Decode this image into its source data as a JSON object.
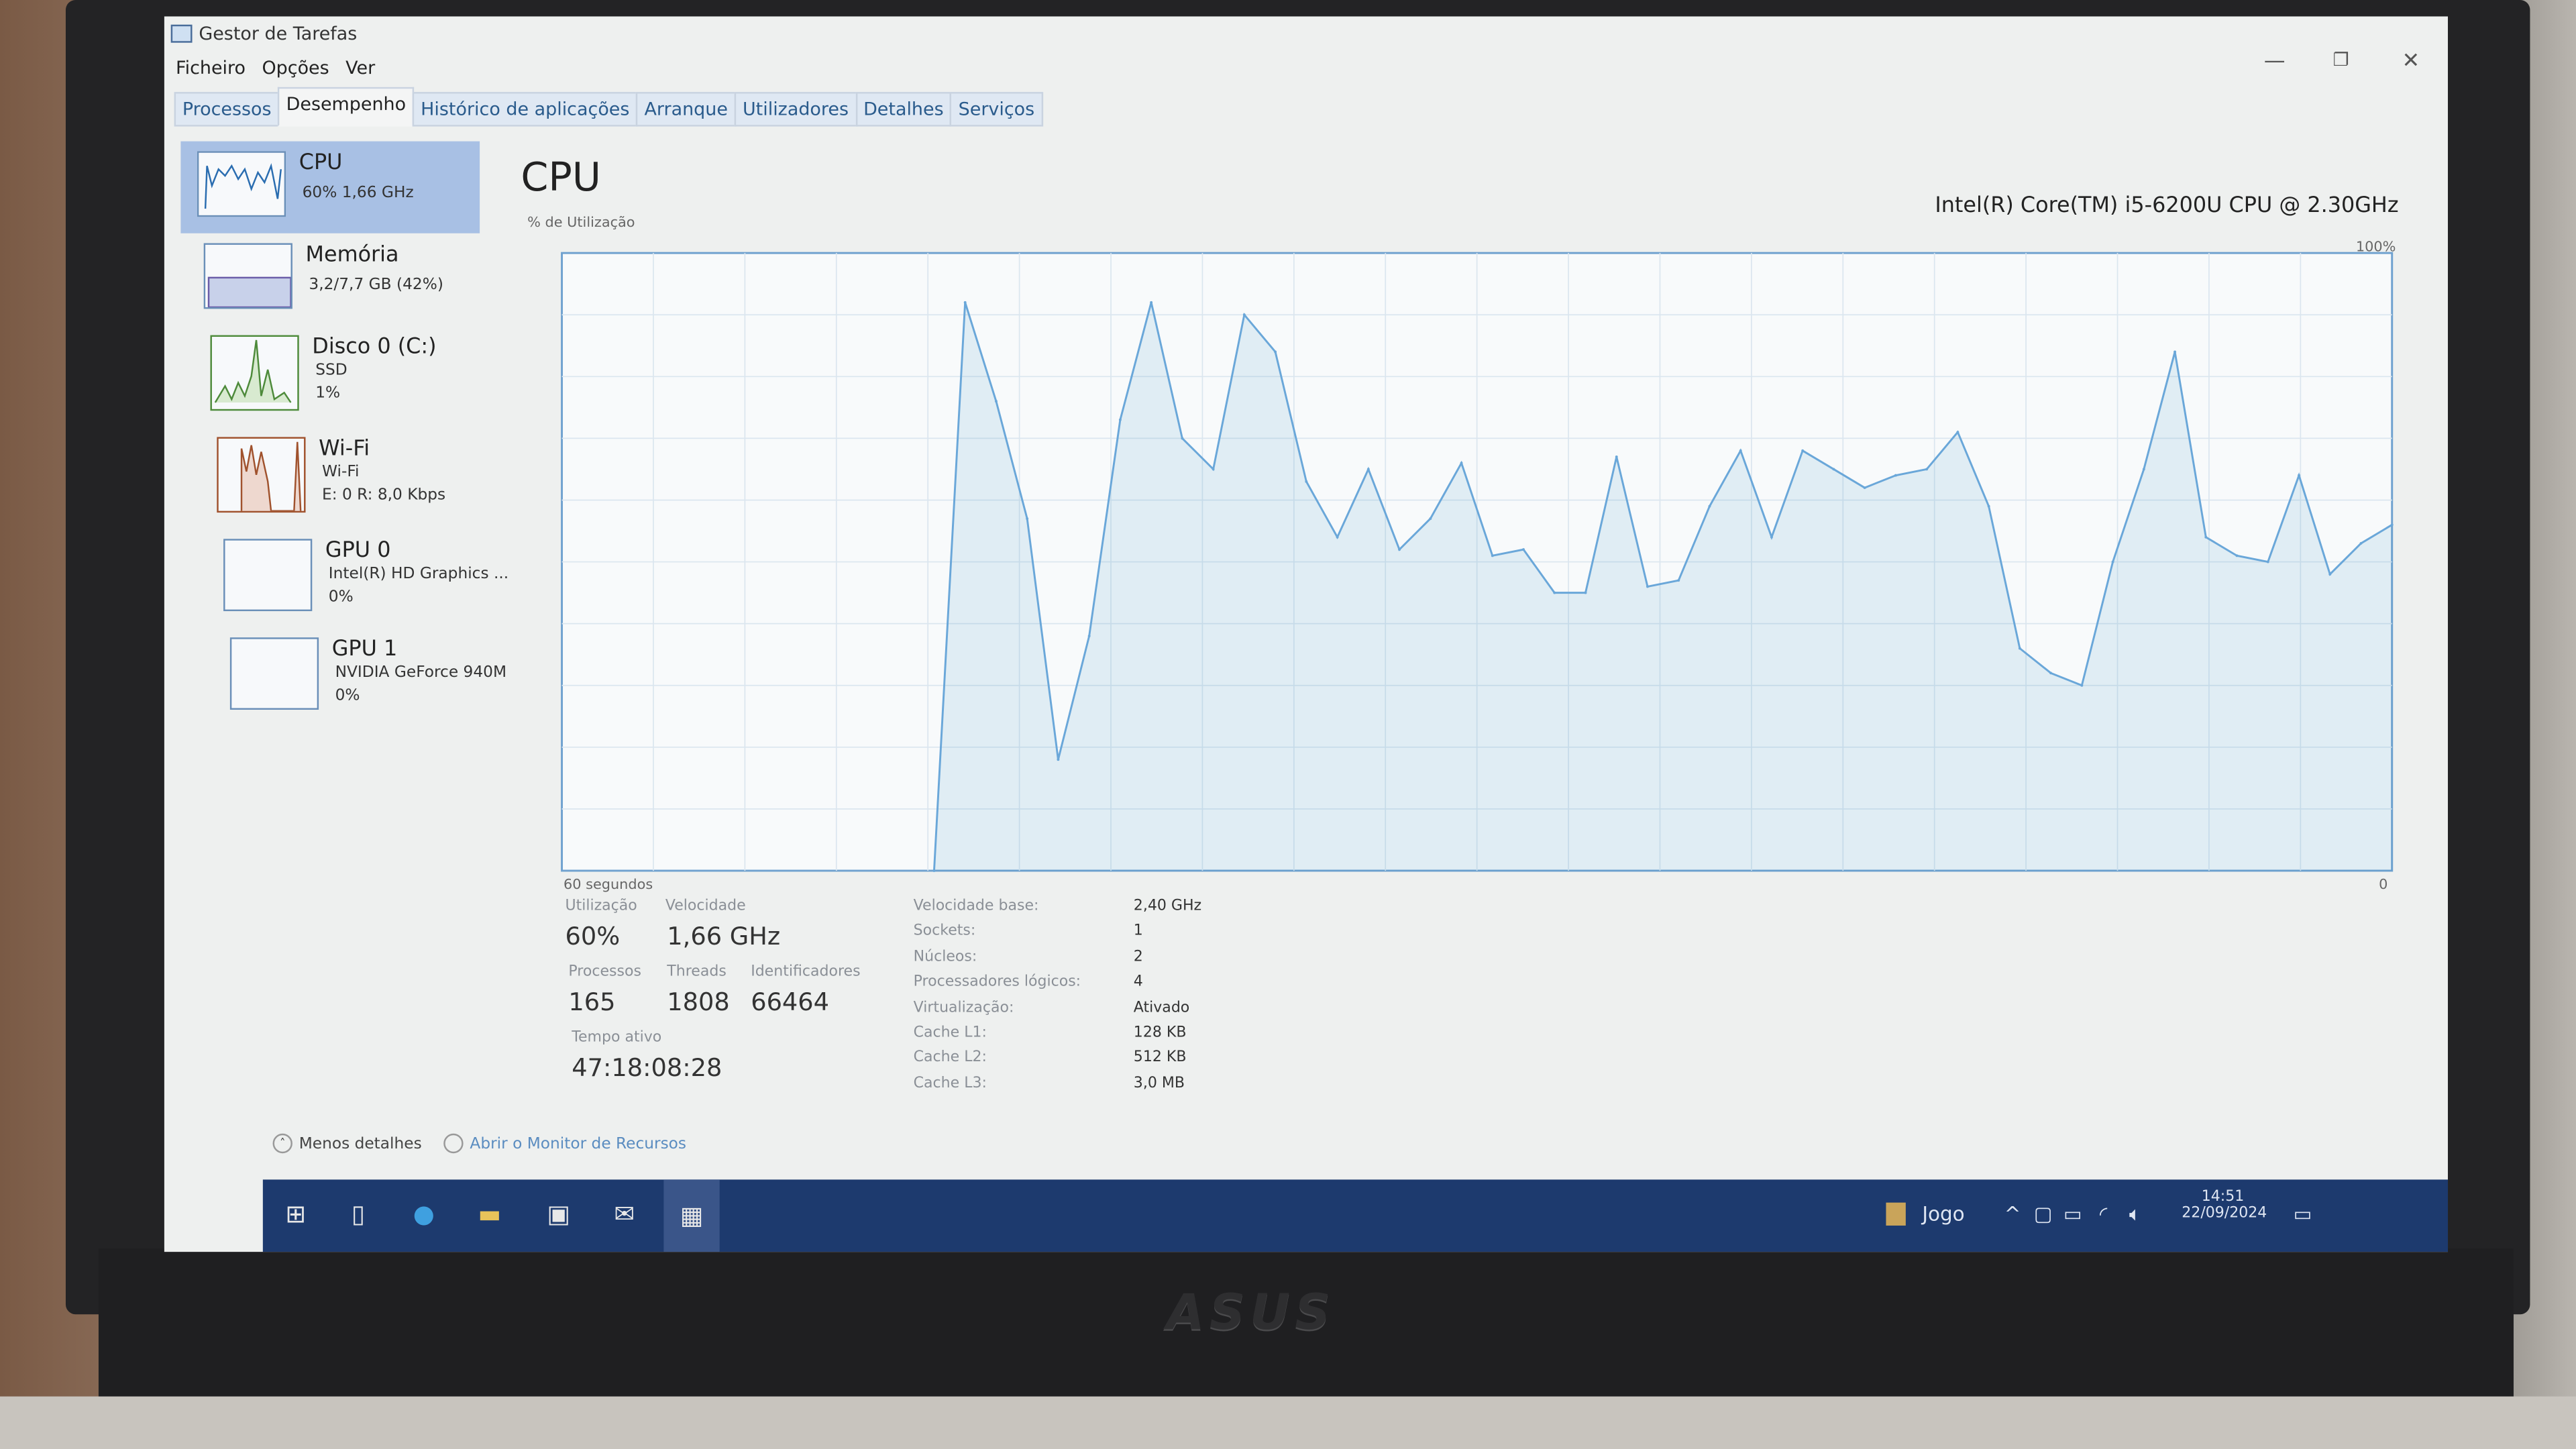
{
  "window": {
    "title": "Gestor de Tarefas",
    "menu": [
      "Ficheiro",
      "Opções",
      "Ver"
    ],
    "tabs": [
      "Processos",
      "Desempenho",
      "Histórico de aplicações",
      "Arranque",
      "Utilizadores",
      "Detalhes",
      "Serviços"
    ],
    "active_tab": "Desempenho"
  },
  "sidebar": {
    "items": [
      {
        "name": "CPU",
        "line1": "60% 1,66 GHz",
        "selected": true
      },
      {
        "name": "Memória",
        "line1": "3,2/7,7 GB (42%)"
      },
      {
        "name": "Disco 0 (C:)",
        "line1": "SSD",
        "line2": "1%"
      },
      {
        "name": "Wi-Fi",
        "line1": "Wi-Fi",
        "line2": "E: 0 R: 8,0 Kbps"
      },
      {
        "name": "GPU 0",
        "line1": "Intel(R) HD Graphics ...",
        "line2": "0%"
      },
      {
        "name": "GPU 1",
        "line1": "NVIDIA GeForce 940M",
        "line2": "0%"
      }
    ]
  },
  "main": {
    "title": "CPU",
    "model": "Intel(R) Core(TM) i5-6200U CPU @ 2.30GHz",
    "stats": {
      "utilization_label": "Utilização",
      "utilization": "60%",
      "speed_label": "Velocidade",
      "speed": "1,66 GHz",
      "processes_label": "Processos",
      "processes": "165",
      "threads_label": "Threads",
      "threads": "1808",
      "handles_label": "Identificadores",
      "handles": "66464",
      "uptime_label": "Tempo ativo",
      "uptime": "47:18:08:28"
    },
    "specs": [
      {
        "k": "Velocidade base:",
        "v": "2,40 GHz"
      },
      {
        "k": "Sockets:",
        "v": "1"
      },
      {
        "k": "Núcleos:",
        "v": "2"
      },
      {
        "k": "Processadores lógicos:",
        "v": "4"
      },
      {
        "k": "Virtualização:",
        "v": "Ativado"
      },
      {
        "k": "Cache L1:",
        "v": "128 KB"
      },
      {
        "k": "Cache L2:",
        "v": "512 KB"
      },
      {
        "k": "Cache L3:",
        "v": "3,0 MB"
      }
    ]
  },
  "footer": {
    "less_details": "Menos detalhes",
    "open_monitor": "Abrir o Monitor de Recursos"
  },
  "taskbar": {
    "game_label": "Jogo",
    "time": "14:51",
    "date": "22/09/2024"
  },
  "colors": {
    "accent": "#117dbb",
    "selected": "#a8c0e4",
    "taskbar": "#1d3a6e"
  },
  "chart_data": {
    "type": "area",
    "ylabel": "% de Utilização",
    "xlabel": "60 segundos",
    "ymax_label": "100%",
    "ymin_label": "0",
    "ylim": [
      0,
      100
    ],
    "x_range_seconds": [
      0,
      60
    ],
    "grid": true,
    "values": [
      null,
      null,
      null,
      null,
      null,
      null,
      null,
      null,
      null,
      null,
      null,
      null,
      0,
      92,
      76,
      57,
      18,
      38,
      73,
      92,
      70,
      65,
      90,
      84,
      63,
      54,
      65,
      52,
      57,
      66,
      51,
      52,
      45,
      45,
      67,
      46,
      47,
      59,
      68,
      54,
      68,
      65,
      62,
      64,
      65,
      71,
      59,
      36,
      32,
      30,
      50,
      65,
      84,
      54,
      51,
      50,
      64,
      48,
      53,
      56
    ]
  }
}
